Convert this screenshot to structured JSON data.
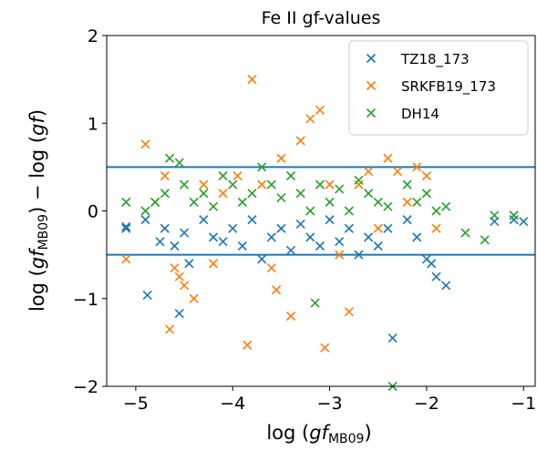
{
  "chart_data": {
    "type": "scatter",
    "title": "Fe II gf-values",
    "xlabel": "log (gf_MB09)",
    "ylabel": "log (gf_MB09) − log (gf)",
    "xlim": [
      -5.3,
      -0.88
    ],
    "ylim": [
      -2,
      2
    ],
    "x_ticks": [
      -5,
      -4,
      -3,
      -2,
      -1
    ],
    "x_tick_labels": [
      "−5",
      "−4",
      "−3",
      "−2",
      "−1"
    ],
    "y_ticks": [
      -2,
      -1,
      0,
      1,
      2
    ],
    "y_tick_labels": [
      "−2",
      "−1",
      "0",
      "1",
      "2"
    ],
    "grid": false,
    "legend_position": "top-right",
    "reference_lines": [
      0.5,
      -0.5
    ],
    "series": [
      {
        "name": "TZ18_173",
        "color": "#1f77b4",
        "points": [
          [
            -5.1,
            -0.18
          ],
          [
            -5.1,
            -0.2
          ],
          [
            -4.9,
            -0.1
          ],
          [
            -4.88,
            -0.96
          ],
          [
            -4.75,
            -0.35
          ],
          [
            -4.7,
            -0.2
          ],
          [
            -4.6,
            -0.4
          ],
          [
            -4.55,
            -1.17
          ],
          [
            -4.5,
            -0.25
          ],
          [
            -4.45,
            -0.6
          ],
          [
            -4.3,
            -0.1
          ],
          [
            -4.2,
            -0.3
          ],
          [
            -4.1,
            -0.35
          ],
          [
            -4.0,
            -0.2
          ],
          [
            -3.9,
            -0.4
          ],
          [
            -3.8,
            -0.1
          ],
          [
            -3.7,
            -0.55
          ],
          [
            -3.6,
            -0.3
          ],
          [
            -3.5,
            -0.2
          ],
          [
            -3.4,
            -0.45
          ],
          [
            -3.3,
            -0.15
          ],
          [
            -3.2,
            -0.3
          ],
          [
            -3.1,
            -0.4
          ],
          [
            -3.0,
            -0.1
          ],
          [
            -2.9,
            -0.35
          ],
          [
            -2.8,
            -0.2
          ],
          [
            -2.7,
            -0.5
          ],
          [
            -2.6,
            -0.3
          ],
          [
            -2.5,
            -0.4
          ],
          [
            -2.4,
            -0.2
          ],
          [
            -2.35,
            -1.45
          ],
          [
            -2.2,
            -0.1
          ],
          [
            -2.1,
            -0.3
          ],
          [
            -2.0,
            -0.55
          ],
          [
            -1.95,
            -0.6
          ],
          [
            -1.9,
            -0.75
          ],
          [
            -1.8,
            -0.85
          ],
          [
            -1.3,
            -0.12
          ],
          [
            -1.1,
            -0.1
          ],
          [
            -1.0,
            -0.12
          ]
        ]
      },
      {
        "name": "SRKFB19_173",
        "color": "#ff7f0e",
        "points": [
          [
            -5.1,
            -0.55
          ],
          [
            -4.9,
            0.76
          ],
          [
            -4.8,
            0.1
          ],
          [
            -4.7,
            0.4
          ],
          [
            -4.65,
            -1.35
          ],
          [
            -4.6,
            -0.65
          ],
          [
            -4.55,
            -0.75
          ],
          [
            -4.5,
            -0.85
          ],
          [
            -4.4,
            -1.0
          ],
          [
            -4.3,
            0.3
          ],
          [
            -4.2,
            -0.6
          ],
          [
            -4.1,
            0.2
          ],
          [
            -3.95,
            0.4
          ],
          [
            -3.85,
            -1.53
          ],
          [
            -3.8,
            1.5
          ],
          [
            -3.7,
            0.3
          ],
          [
            -3.6,
            -0.65
          ],
          [
            -3.55,
            -0.9
          ],
          [
            -3.5,
            0.6
          ],
          [
            -3.4,
            -1.2
          ],
          [
            -3.3,
            0.8
          ],
          [
            -3.2,
            1.05
          ],
          [
            -3.1,
            1.15
          ],
          [
            -3.05,
            -1.56
          ],
          [
            -3.0,
            0.3
          ],
          [
            -2.9,
            -0.5
          ],
          [
            -2.8,
            -1.15
          ],
          [
            -2.7,
            0.3
          ],
          [
            -2.6,
            0.45
          ],
          [
            -2.5,
            -0.2
          ],
          [
            -2.4,
            0.6
          ],
          [
            -2.3,
            0.45
          ],
          [
            -2.2,
            0.1
          ],
          [
            -2.1,
            0.5
          ],
          [
            -2.0,
            0.4
          ],
          [
            -1.9,
            -0.2
          ],
          [
            -1.1,
            -0.05
          ]
        ]
      },
      {
        "name": "DH14",
        "color": "#2ca02c",
        "points": [
          [
            -5.1,
            0.1
          ],
          [
            -4.9,
            0.0
          ],
          [
            -4.8,
            0.1
          ],
          [
            -4.7,
            0.2
          ],
          [
            -4.65,
            0.6
          ],
          [
            -4.55,
            0.55
          ],
          [
            -4.5,
            0.3
          ],
          [
            -4.4,
            0.1
          ],
          [
            -4.3,
            0.2
          ],
          [
            -4.2,
            0.05
          ],
          [
            -4.1,
            0.4
          ],
          [
            -4.0,
            0.3
          ],
          [
            -3.9,
            0.1
          ],
          [
            -3.8,
            0.2
          ],
          [
            -3.7,
            0.5
          ],
          [
            -3.6,
            0.3
          ],
          [
            -3.5,
            0.15
          ],
          [
            -3.4,
            0.4
          ],
          [
            -3.3,
            0.2
          ],
          [
            -3.2,
            0.0
          ],
          [
            -3.15,
            -1.05
          ],
          [
            -3.1,
            0.3
          ],
          [
            -3.0,
            0.1
          ],
          [
            -2.9,
            0.25
          ],
          [
            -2.8,
            0.0
          ],
          [
            -2.7,
            0.35
          ],
          [
            -2.6,
            0.2
          ],
          [
            -2.5,
            0.1
          ],
          [
            -2.4,
            0.05
          ],
          [
            -2.35,
            -2.0
          ],
          [
            -2.2,
            0.3
          ],
          [
            -2.1,
            0.1
          ],
          [
            -2.0,
            0.2
          ],
          [
            -1.9,
            0.0
          ],
          [
            -1.8,
            0.05
          ],
          [
            -1.6,
            -0.25
          ],
          [
            -1.4,
            -0.33
          ],
          [
            -1.3,
            -0.05
          ],
          [
            -1.1,
            -0.05
          ]
        ]
      }
    ]
  }
}
